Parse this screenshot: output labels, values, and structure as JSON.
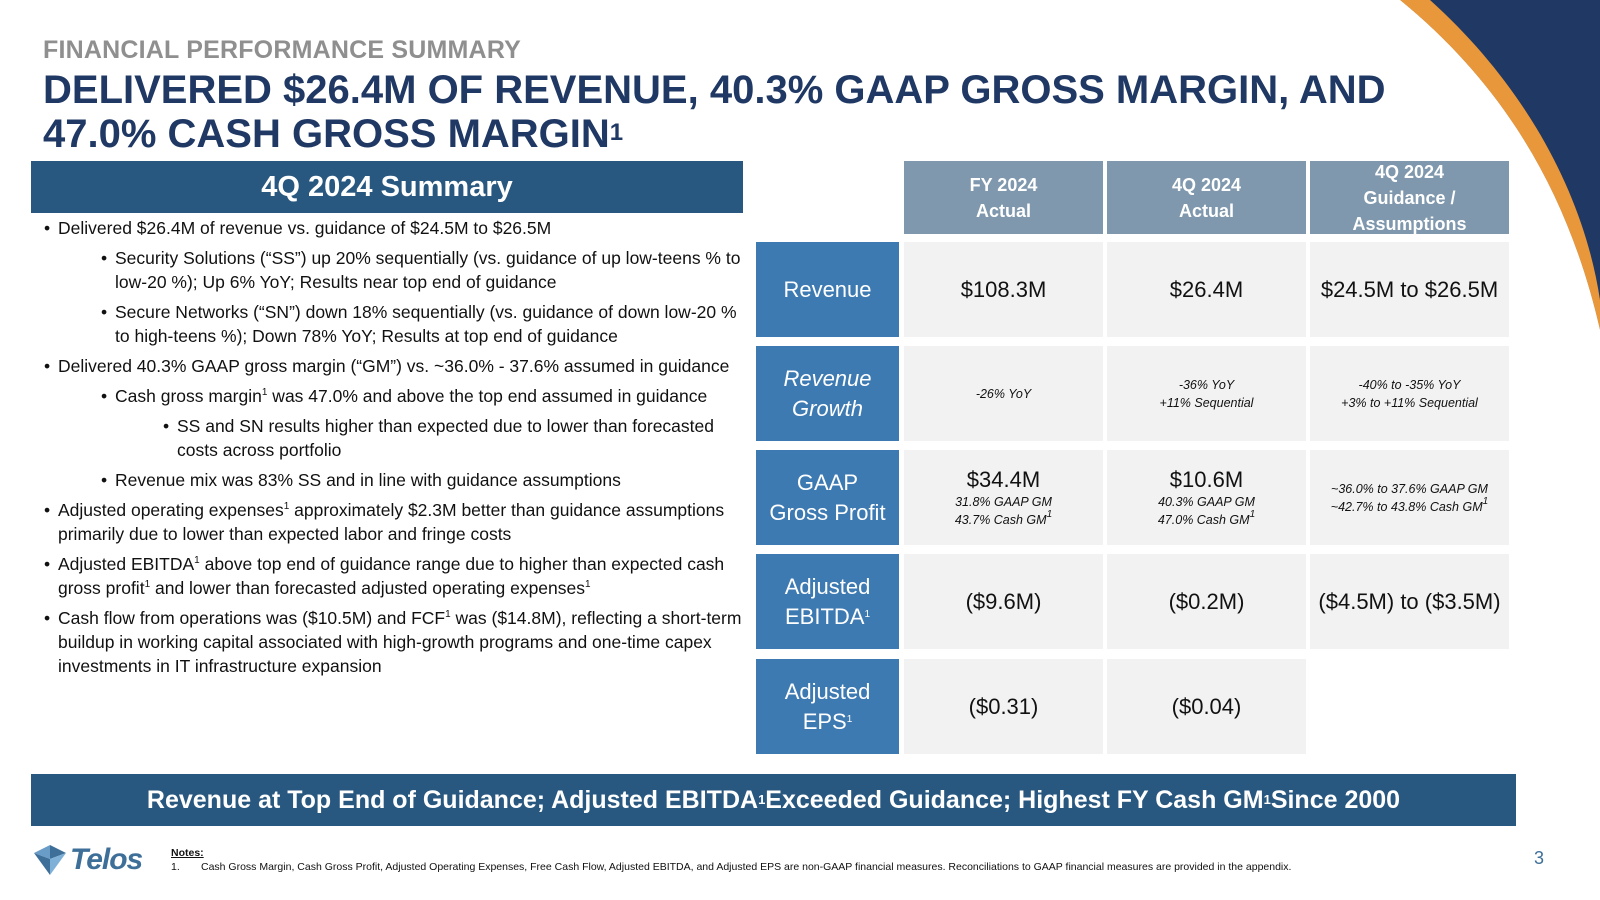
{
  "eyebrow": "FINANCIAL PERFORMANCE SUMMARY",
  "headline": {
    "line1": "DELIVERED $26.4M OF REVENUE, 40.3% GAAP GROSS MARGIN, AND",
    "line2": "47.0% CASH GROSS MARGIN",
    "line2_sup": "1"
  },
  "summary": {
    "title": "4Q 2024 Summary",
    "b1": "Delivered $26.4M of revenue vs. guidance of $24.5M to $26.5M",
    "b1a": "Security Solutions (“SS”) up 20% sequentially (vs. guidance of up low-teens % to low-20 %); Up 6% YoY; Results near top end of guidance",
    "b1b": "Secure Networks (“SN”) down 18% sequentially (vs. guidance of down low-20 % to high-teens %); Down 78% YoY; Results at top end of guidance",
    "b2": "Delivered 40.3% GAAP gross margin (“GM”) vs. ~36.0% - 37.6% assumed in guidance",
    "b2a_pre": "Cash gross margin",
    "b2a_post": " was 47.0% and above the top end assumed in guidance",
    "b2a1": "SS and SN results higher than expected due to lower than forecasted costs across portfolio",
    "b2b": "Revenue mix was 83% SS and in line with guidance assumptions",
    "b3_pre": "Adjusted operating expenses",
    "b3_post": " approximately $2.3M better than guidance assumptions primarily due to lower than expected labor and fringe costs",
    "b4_p1": "Adjusted EBITDA",
    "b4_p2": " above top end of guidance range due to higher than expected cash gross profit",
    "b4_p3": " and lower than forecasted adjusted operating expenses",
    "b5_p1": "Cash flow from operations was ($10.5M) and FCF",
    "b5_p2": " was ($14.8M), reflecting a short-term buildup in working capital associated with high-growth programs and one-time capex investments in IT infrastructure expansion",
    "sup": "1"
  },
  "table": {
    "columns": [
      {
        "l1": "FY 2024",
        "l2": "Actual",
        "l3": ""
      },
      {
        "l1": "4Q 2024",
        "l2": "Actual",
        "l3": ""
      },
      {
        "l1": "4Q 2024",
        "l2": "Guidance /",
        "l3": "Assumptions"
      }
    ],
    "rows": {
      "revenue": {
        "label": "Revenue",
        "c1": "$108.3M",
        "c2": "$26.4M",
        "c3": "$24.5M to $26.5M"
      },
      "growth": {
        "l1": "Revenue",
        "l2": "Growth",
        "c1": "-26% YoY",
        "c2a": "-36% YoY",
        "c2b": "+11% Sequential",
        "c3a": "-40% to -35% YoY",
        "c3b": "+3% to +11% Sequential"
      },
      "gaap": {
        "l1": "GAAP",
        "l2": "Gross Profit",
        "c1": "$34.4M",
        "c1a": "31.8% GAAP GM",
        "c1b": "43.7% Cash GM",
        "c2": "$10.6M",
        "c2a": "40.3% GAAP GM",
        "c2b": "47.0% Cash GM",
        "c3a": "~36.0% to 37.6% GAAP GM",
        "c3b": "~42.7% to 43.8% Cash GM"
      },
      "ebitda": {
        "l1": "Adjusted",
        "l2": "EBITDA",
        "c1": "($9.6M)",
        "c2": "($0.2M)",
        "c3": "($4.5M) to ($3.5M)"
      },
      "eps": {
        "l1": "Adjusted",
        "l2": "EPS",
        "c1": "($0.31)",
        "c2": "($0.04)"
      },
      "sup": "1"
    }
  },
  "banner": {
    "p1": "Revenue at Top End of Guidance; Adjusted EBITDA",
    "p2": " Exceeded Guidance; Highest FY Cash GM",
    "p3": " Since 2000",
    "sup": "1"
  },
  "footer": {
    "logo": "Telos",
    "notes_title": "Notes:",
    "note_num": "1.",
    "note_text": "Cash Gross Margin, Cash Gross Profit, Adjusted Operating Expenses, Free Cash Flow, Adjusted EBITDA, and Adjusted EPS are non-GAAP financial measures. Reconciliations to GAAP financial measures are provided in the appendix.",
    "page_number": "3"
  },
  "colors": {
    "navy": "#1f3864",
    "header_blue": "#28577f",
    "row_blue": "#3e7ab2",
    "col_gray_blue": "#7f98ad",
    "cell_gray": "#f2f2f2",
    "accent_orange": "#e8973a"
  }
}
